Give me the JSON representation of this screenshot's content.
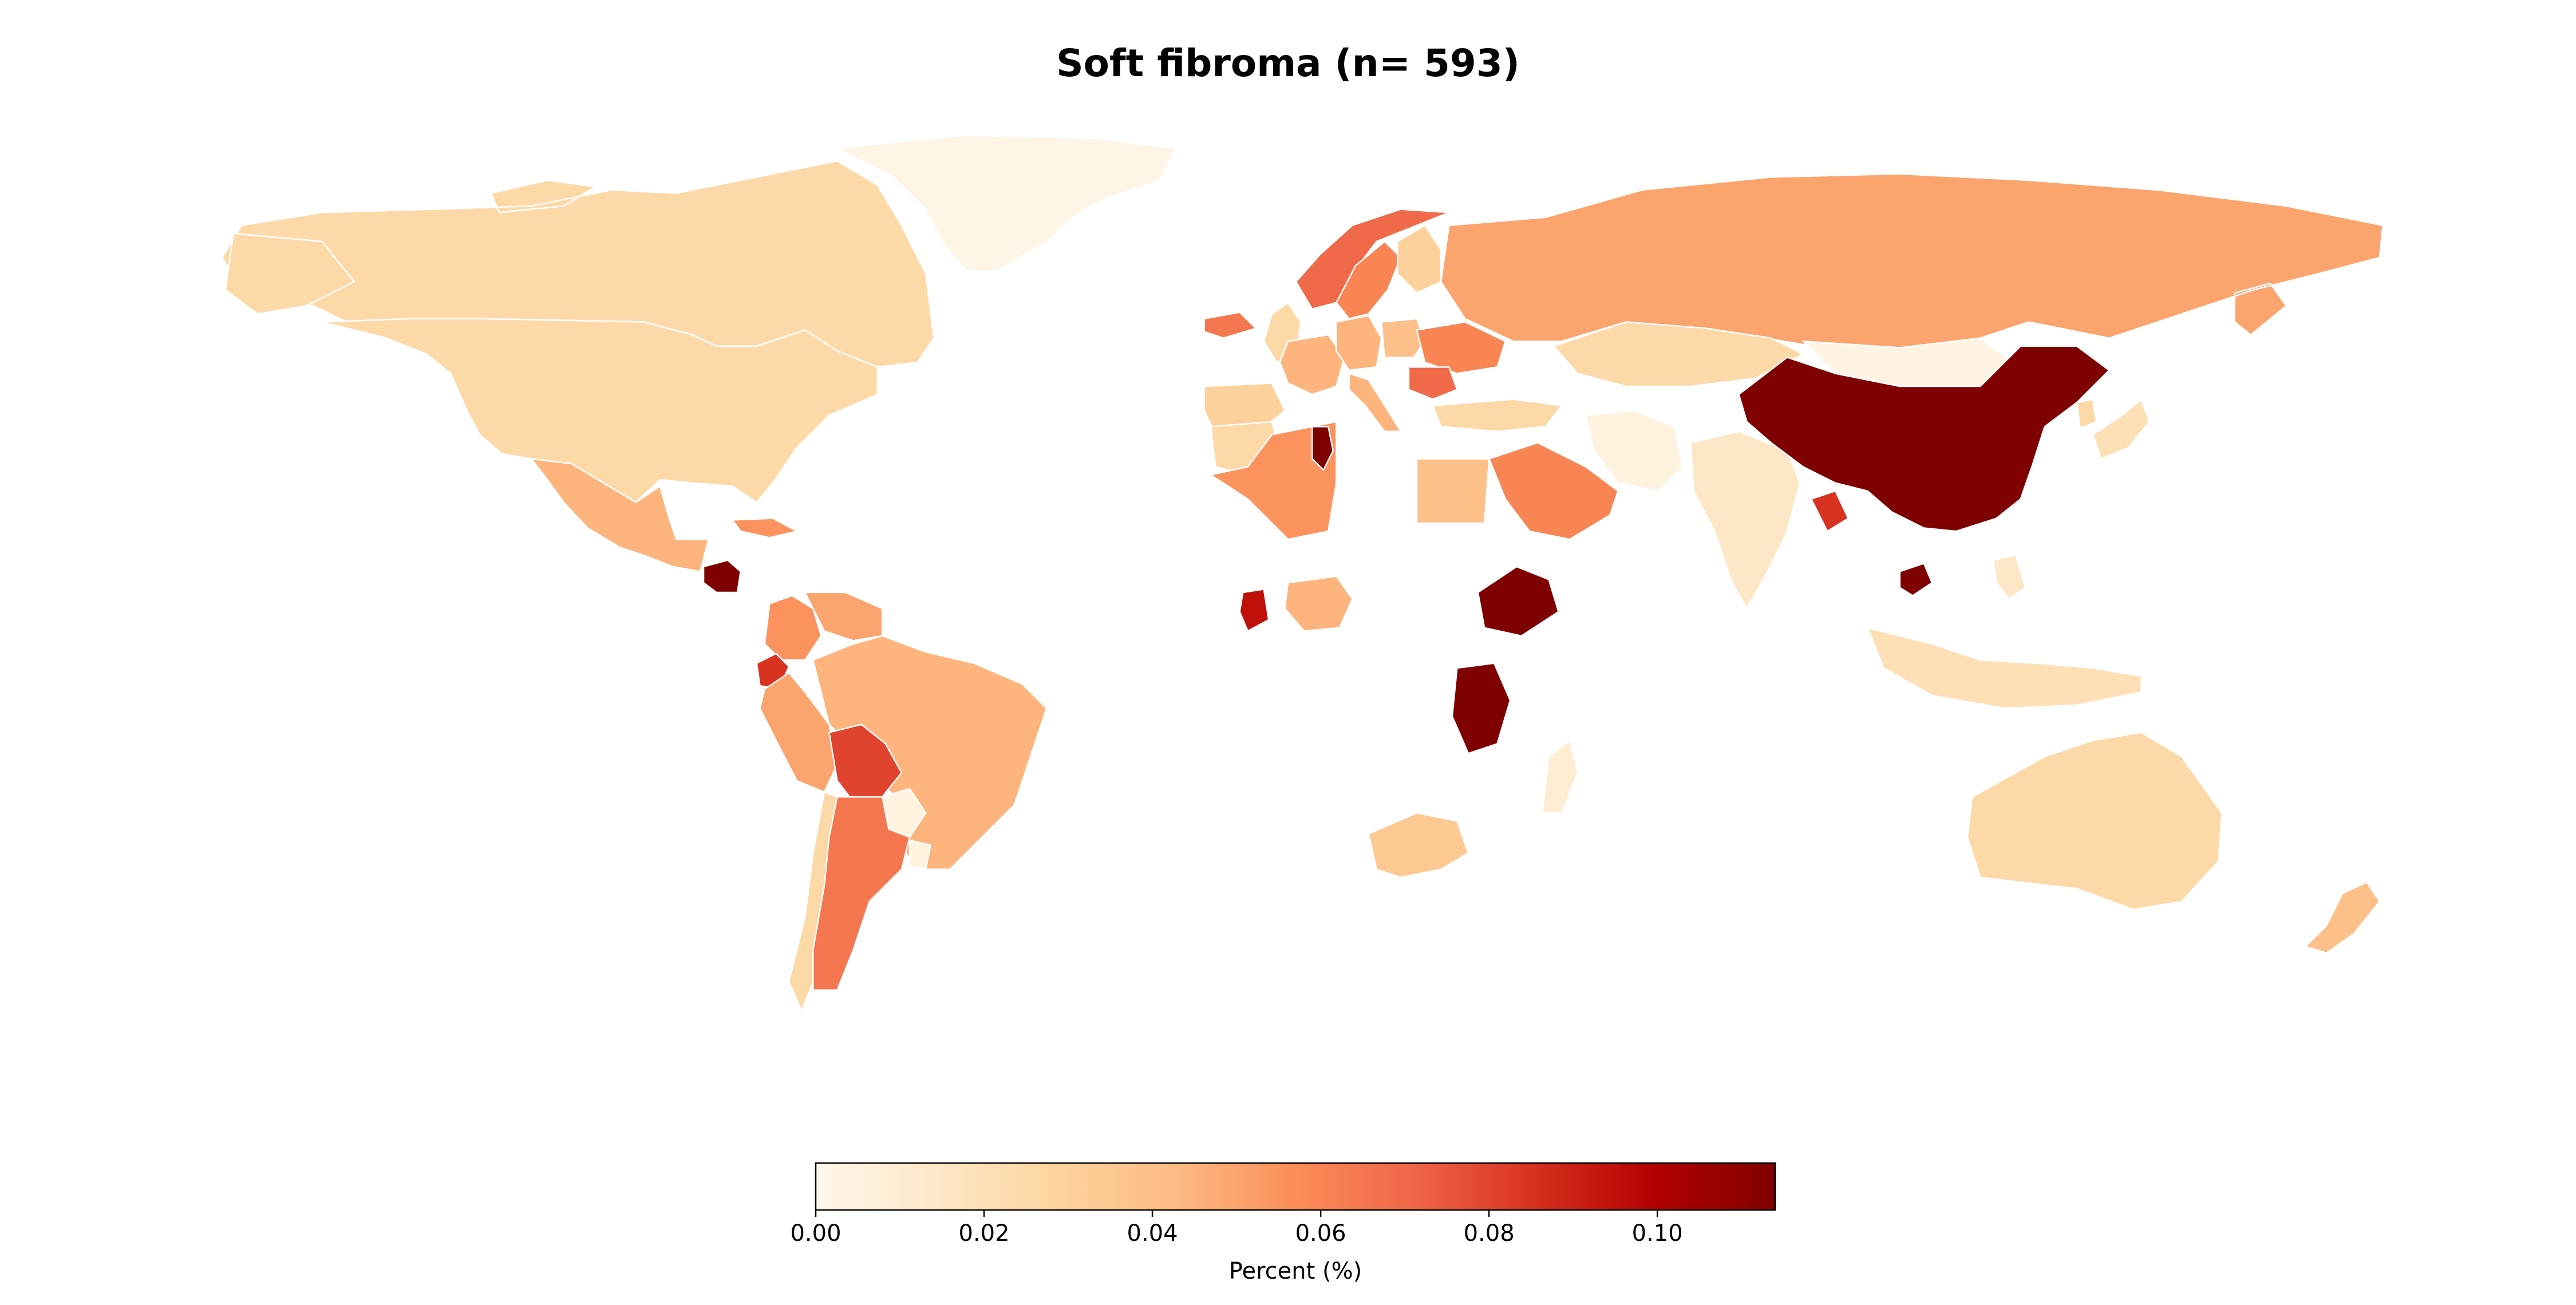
{
  "title": "Soft fibroma (n= 593)",
  "colorbar": {
    "label": "Percent (%)",
    "min": 0.0,
    "max": 0.114,
    "ticks": [
      {
        "value": 0.0,
        "label": "0.00"
      },
      {
        "value": 0.02,
        "label": "0.02"
      },
      {
        "value": 0.04,
        "label": "0.04"
      },
      {
        "value": 0.06,
        "label": "0.06"
      },
      {
        "value": 0.08,
        "label": "0.08"
      },
      {
        "value": 0.1,
        "label": "0.10"
      }
    ],
    "colormap": "OrRd",
    "stops": [
      "#fff7ec",
      "#fee8c8",
      "#fdd49e",
      "#fdbb84",
      "#fc8d59",
      "#ef6548",
      "#d7301f",
      "#b30000",
      "#7f0000"
    ]
  },
  "chart_data": {
    "type": "choropleth",
    "value_unit": "Percent (%)",
    "regions": [
      {
        "name": "Canada",
        "value": 0.025
      },
      {
        "name": "United States",
        "value": 0.025
      },
      {
        "name": "Greenland",
        "value": 0.002
      },
      {
        "name": "Mexico",
        "value": 0.045
      },
      {
        "name": "Guatemala",
        "value": 0.114
      },
      {
        "name": "Cuba",
        "value": 0.055
      },
      {
        "name": "Venezuela",
        "value": 0.05
      },
      {
        "name": "Colombia",
        "value": 0.055
      },
      {
        "name": "Ecuador",
        "value": 0.085
      },
      {
        "name": "Peru",
        "value": 0.05
      },
      {
        "name": "Brazil",
        "value": 0.045
      },
      {
        "name": "Bolivia",
        "value": 0.08
      },
      {
        "name": "Paraguay",
        "value": 0.005
      },
      {
        "name": "Chile",
        "value": 0.025
      },
      {
        "name": "Argentina",
        "value": 0.065
      },
      {
        "name": "Uruguay",
        "value": 0.005
      },
      {
        "name": "Iceland",
        "value": 0.065
      },
      {
        "name": "Norway",
        "value": 0.07
      },
      {
        "name": "Sweden",
        "value": 0.06
      },
      {
        "name": "Finland",
        "value": 0.03
      },
      {
        "name": "United Kingdom",
        "value": 0.025
      },
      {
        "name": "Spain",
        "value": 0.03
      },
      {
        "name": "France",
        "value": 0.045
      },
      {
        "name": "Germany",
        "value": 0.045
      },
      {
        "name": "Poland",
        "value": 0.04
      },
      {
        "name": "Ukraine",
        "value": 0.06
      },
      {
        "name": "Romania",
        "value": 0.07
      },
      {
        "name": "Italy",
        "value": 0.045
      },
      {
        "name": "Russia",
        "value": 0.05
      },
      {
        "name": "Kazakhstan",
        "value": 0.025
      },
      {
        "name": "Turkey",
        "value": 0.025
      },
      {
        "name": "Iran",
        "value": 0.005
      },
      {
        "name": "Saudi Arabia",
        "value": 0.06
      },
      {
        "name": "Egypt",
        "value": 0.04
      },
      {
        "name": "Algeria",
        "value": 0.055
      },
      {
        "name": "Tunisia",
        "value": 0.114
      },
      {
        "name": "Morocco",
        "value": 0.025
      },
      {
        "name": "Nigeria",
        "value": 0.045
      },
      {
        "name": "Ghana",
        "value": 0.095
      },
      {
        "name": "Ethiopia",
        "value": 0.114
      },
      {
        "name": "Tanzania",
        "value": 0.114
      },
      {
        "name": "South Africa",
        "value": 0.035
      },
      {
        "name": "Madagascar",
        "value": 0.01
      },
      {
        "name": "India",
        "value": 0.015
      },
      {
        "name": "Bangladesh",
        "value": 0.085
      },
      {
        "name": "China",
        "value": 0.114
      },
      {
        "name": "Mongolia",
        "value": 0.003
      },
      {
        "name": "Japan",
        "value": 0.02
      },
      {
        "name": "South Korea",
        "value": 0.025
      },
      {
        "name": "Cambodia",
        "value": 0.114
      },
      {
        "name": "Indonesia",
        "value": 0.02
      },
      {
        "name": "Philippines",
        "value": 0.015
      },
      {
        "name": "Australia",
        "value": 0.025
      },
      {
        "name": "New Zealand",
        "value": 0.04
      }
    ]
  }
}
